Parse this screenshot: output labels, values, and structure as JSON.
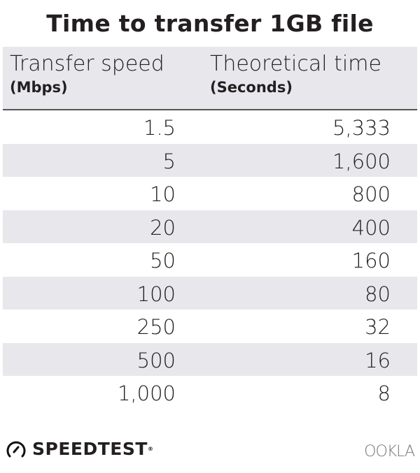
{
  "chart_data": {
    "type": "table",
    "title": "Time to transfer 1GB file",
    "columns": [
      {
        "label": "Transfer speed",
        "unit": "(Mbps)"
      },
      {
        "label": "Theoretical time",
        "unit": "(Seconds)"
      }
    ],
    "rows": [
      [
        "1.5",
        "5,333"
      ],
      [
        "5",
        "1,600"
      ],
      [
        "10",
        "800"
      ],
      [
        "20",
        "400"
      ],
      [
        "50",
        "160"
      ],
      [
        "100",
        "80"
      ],
      [
        "250",
        "32"
      ],
      [
        "500",
        "16"
      ],
      [
        "1,000",
        "8"
      ]
    ]
  },
  "footer": {
    "left_logo": "SPEEDTEST",
    "right_logo": "OOKLA"
  },
  "colors": {
    "band": "#e8e8ec",
    "text": "#231f20"
  }
}
